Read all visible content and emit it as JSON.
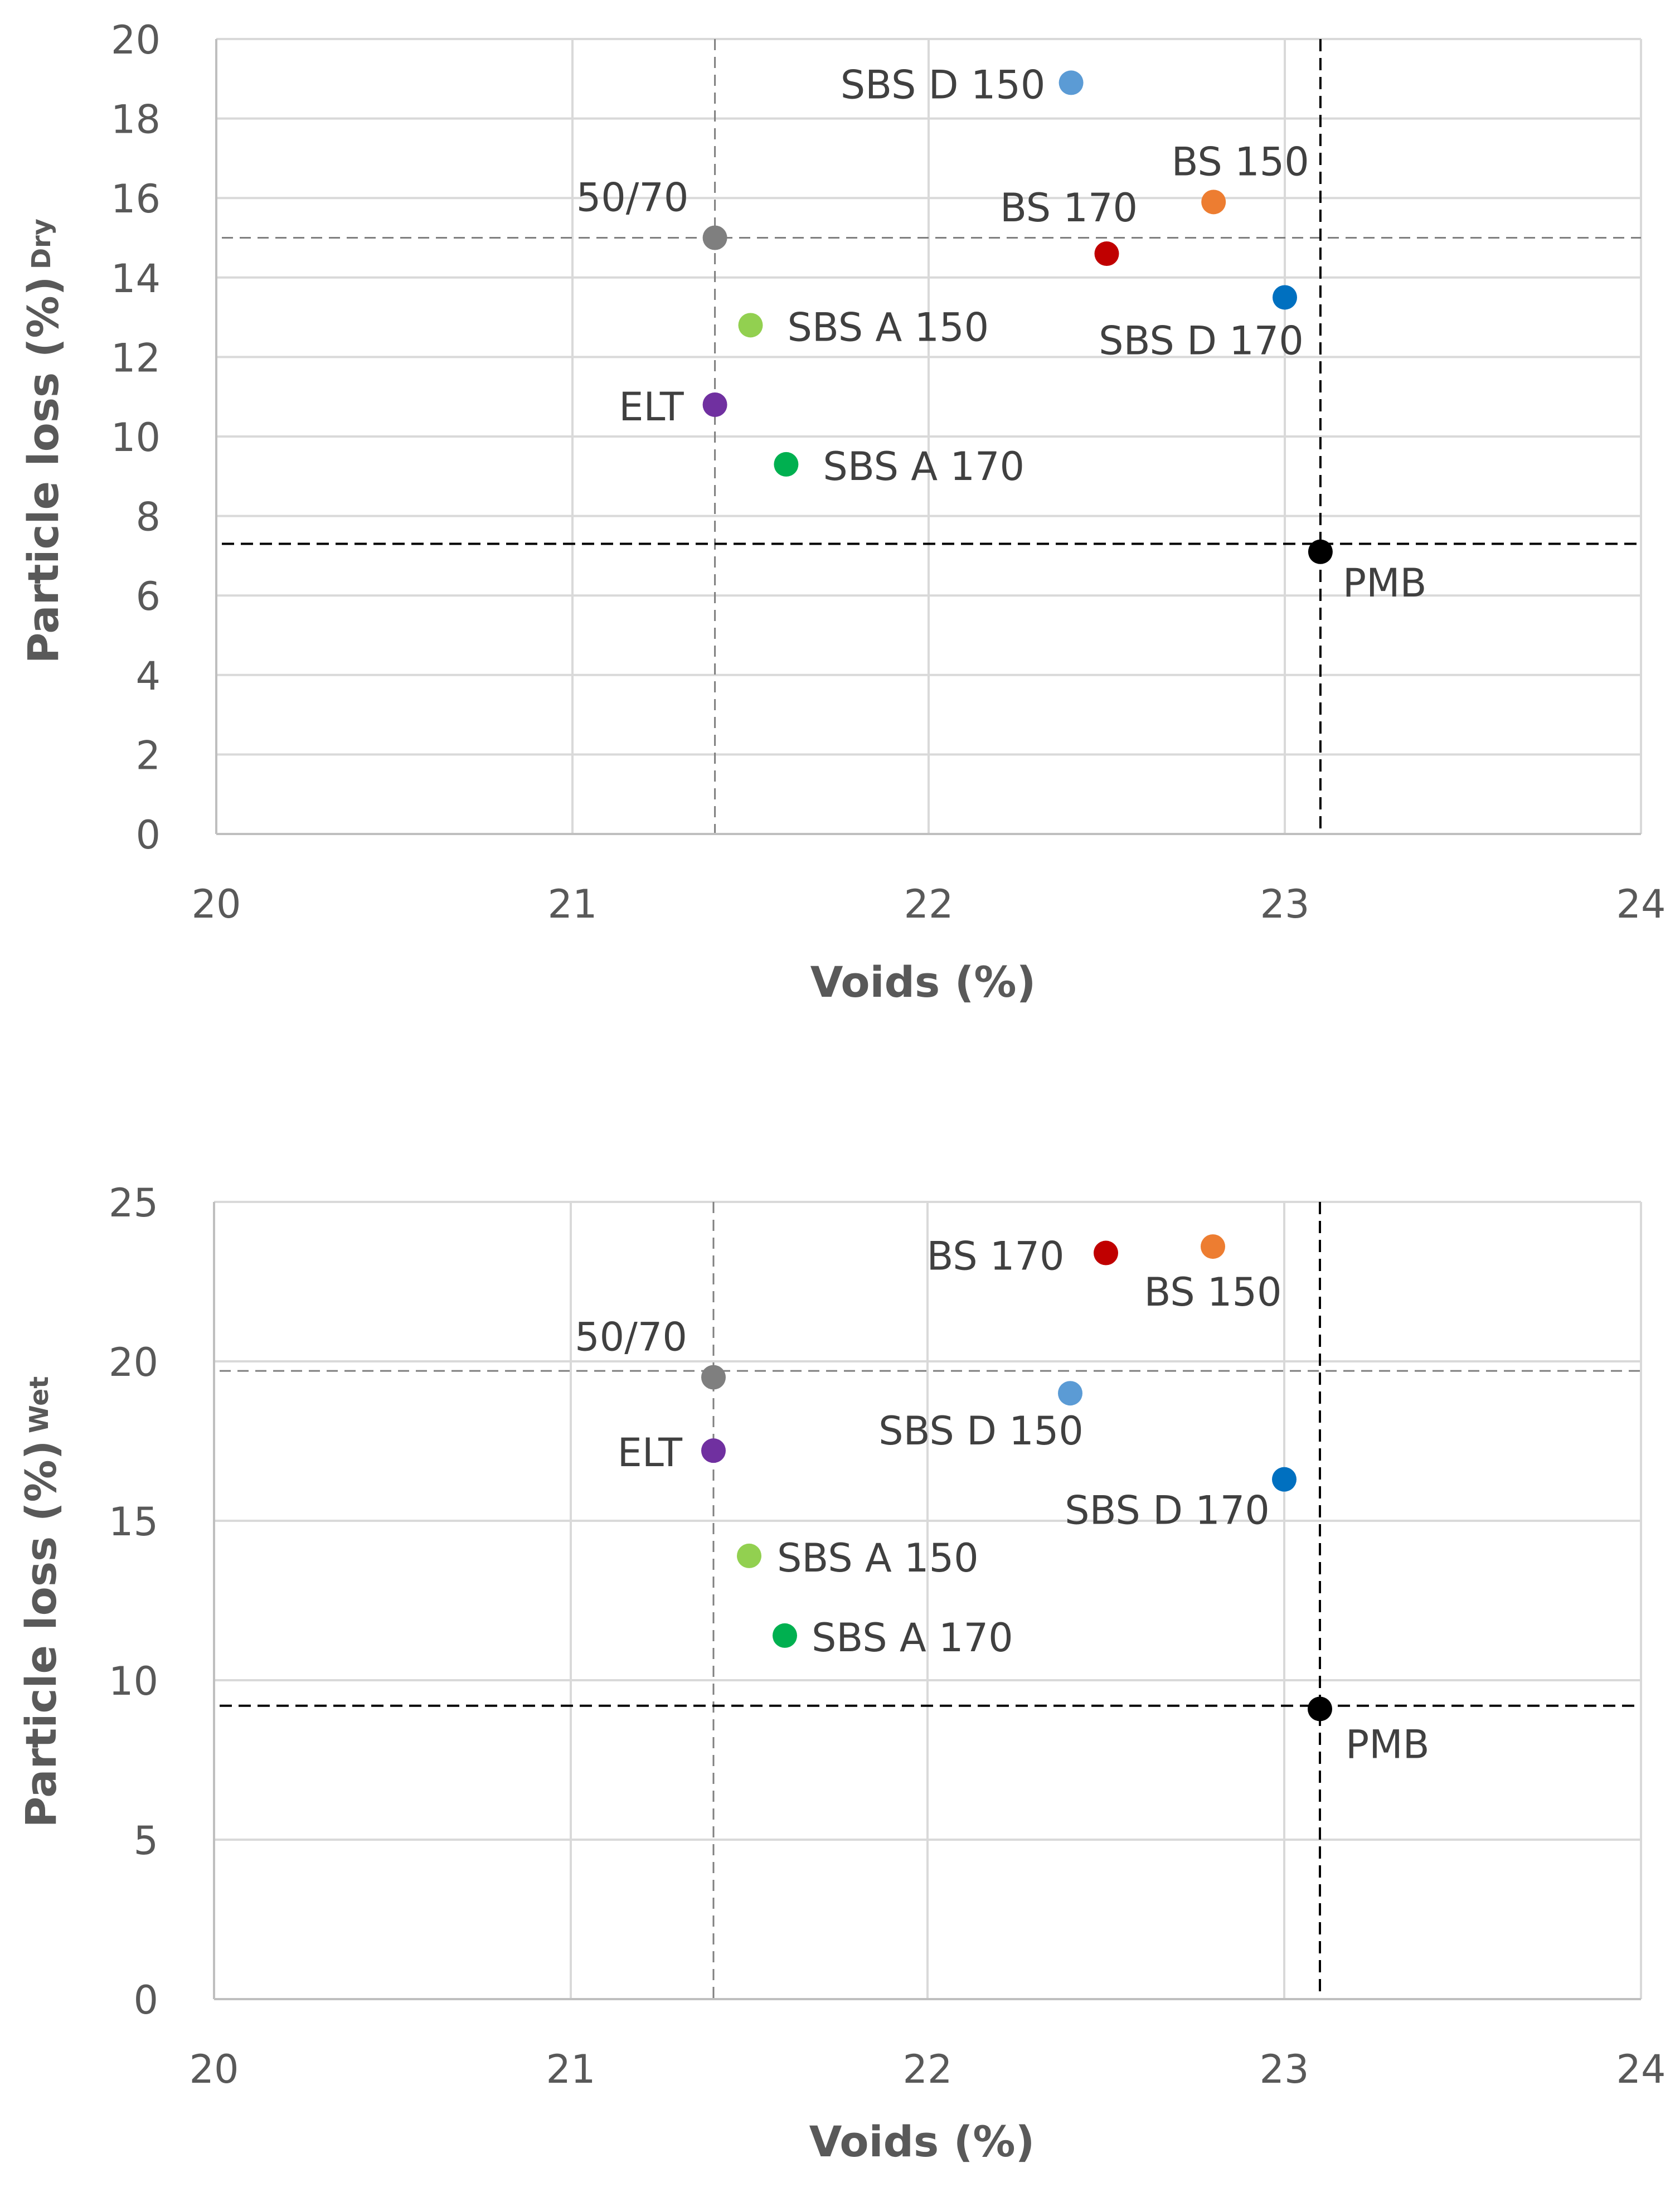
{
  "chart_data": [
    {
      "type": "scatter",
      "title": "",
      "xlabel": "Voids (%)",
      "ylabel": "Particle loss (%)",
      "ylabel_superscript": "Dry",
      "xlim": [
        20,
        24
      ],
      "ylim": [
        0,
        20
      ],
      "x_ticks": [
        20,
        21,
        22,
        23,
        24
      ],
      "y_ticks": [
        0,
        2,
        4,
        6,
        8,
        10,
        12,
        14,
        16,
        18,
        20
      ],
      "grid": true,
      "points": [
        {
          "label": "SBS D 150",
          "x": 22.4,
          "y": 18.9,
          "color": "#5b9bd5"
        },
        {
          "label": "BS 150",
          "x": 22.8,
          "y": 15.9,
          "color": "#ed7d31"
        },
        {
          "label": "50/70",
          "x": 21.4,
          "y": 15.0,
          "color": "#7f7f7f"
        },
        {
          "label": "BS 170",
          "x": 22.5,
          "y": 14.6,
          "color": "#c00000"
        },
        {
          "label": "SBS D 170",
          "x": 23.0,
          "y": 13.5,
          "color": "#0070c0"
        },
        {
          "label": "SBS A 150",
          "x": 21.5,
          "y": 12.8,
          "color": "#92d050"
        },
        {
          "label": "ELT",
          "x": 21.4,
          "y": 10.8,
          "color": "#7030a0"
        },
        {
          "label": "SBS A 170",
          "x": 21.6,
          "y": 9.3,
          "color": "#00b050"
        },
        {
          "label": "PMB",
          "x": 23.1,
          "y": 7.1,
          "color": "#000000"
        }
      ],
      "reference_lines": [
        {
          "orientation": "vertical",
          "value": 21.4,
          "color": "#7f7f7f"
        },
        {
          "orientation": "horizontal",
          "value": 15.0,
          "color": "#7f7f7f"
        },
        {
          "orientation": "vertical",
          "value": 23.1,
          "color": "#000000"
        },
        {
          "orientation": "horizontal",
          "value": 7.3,
          "color": "#000000"
        }
      ]
    },
    {
      "type": "scatter",
      "title": "",
      "xlabel": "Voids (%)",
      "ylabel": "Particle loss (%)",
      "ylabel_superscript": "Wet",
      "xlim": [
        20,
        24
      ],
      "ylim": [
        0,
        25
      ],
      "x_ticks": [
        20,
        21,
        22,
        23,
        24
      ],
      "y_ticks": [
        0,
        5,
        10,
        15,
        20,
        25
      ],
      "grid": true,
      "points": [
        {
          "label": "BS 170",
          "x": 22.5,
          "y": 23.4,
          "color": "#c00000"
        },
        {
          "label": "BS 150",
          "x": 22.8,
          "y": 23.6,
          "color": "#ed7d31"
        },
        {
          "label": "50/70",
          "x": 21.4,
          "y": 19.5,
          "color": "#7f7f7f"
        },
        {
          "label": "SBS D 150",
          "x": 22.4,
          "y": 19.0,
          "color": "#5b9bd5"
        },
        {
          "label": "ELT",
          "x": 21.4,
          "y": 17.2,
          "color": "#7030a0"
        },
        {
          "label": "SBS D 170",
          "x": 23.0,
          "y": 16.3,
          "color": "#0070c0"
        },
        {
          "label": "SBS A 150",
          "x": 21.5,
          "y": 13.9,
          "color": "#92d050"
        },
        {
          "label": "SBS A 170",
          "x": 21.6,
          "y": 11.4,
          "color": "#00b050"
        },
        {
          "label": "PMB",
          "x": 23.1,
          "y": 9.1,
          "color": "#000000"
        }
      ],
      "reference_lines": [
        {
          "orientation": "vertical",
          "value": 21.4,
          "color": "#7f7f7f"
        },
        {
          "orientation": "horizontal",
          "value": 19.7,
          "color": "#7f7f7f"
        },
        {
          "orientation": "vertical",
          "value": 23.1,
          "color": "#000000"
        },
        {
          "orientation": "horizontal",
          "value": 9.2,
          "color": "#000000"
        }
      ]
    }
  ]
}
